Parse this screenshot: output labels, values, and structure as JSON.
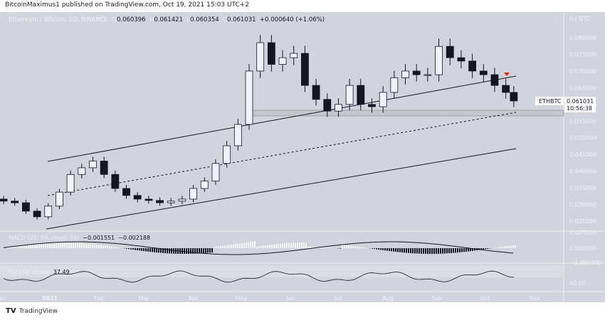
{
  "header": {
    "published": "BitcoinMaximus1 published on TradingView.com, Oct 19, 2021 15:03 UTC+2"
  },
  "legend": {
    "symbol": "Ethereum / Bitcoin, 1D, BINANCE",
    "o_label": "O",
    "o": "0.060396",
    "h_label": "H",
    "h": "0.061421",
    "l_label": "L",
    "l": "0.060354",
    "c_label": "C",
    "c": "0.061031",
    "change": "+0.000640 (+1.06%)"
  },
  "price_label": {
    "ticker": "ETHBTC",
    "price": "0.061031",
    "countdown": "10:56:38"
  },
  "macd": {
    "name": "MACD (21, 50, close, 24)",
    "v1": "−0.001551",
    "v2": "−0.002188",
    "ticks": [
      "0.005000",
      "0.000000",
      "−0.005000"
    ]
  },
  "rsi": {
    "name": "RSI (14, close)",
    "value": "37.49",
    "ticks": [
      "40.00"
    ]
  },
  "footer": {
    "brand": "TradingView"
  },
  "colors": {
    "background": "#d1d4dc",
    "candle": "#131722",
    "arrow": "#e0261b"
  },
  "chart_data": {
    "type": "candlestick",
    "title": "Ethereum / Bitcoin, 1D, BINANCE",
    "yunit": "BTC",
    "ylim": [
      0.022,
      0.083
    ],
    "y_ticks": [
      "0.080000",
      "0.075000",
      "0.070000",
      "0.065000",
      "0.060000",
      "0.055000",
      "0.050000",
      "0.045000",
      "0.040000",
      "0.035000",
      "0.030000",
      "0.025000"
    ],
    "x_ticks": [
      "Dec",
      "2021",
      "Feb",
      "Mar",
      "Apr",
      "May",
      "Jun",
      "Jul",
      "Aug",
      "Sep",
      "Oct",
      "Nov"
    ],
    "grid": false,
    "series": [
      {
        "dates": [
          "2020-12-03",
          "2020-12-10",
          "2020-12-17",
          "2020-12-24",
          "2020-12-31",
          "2021-01-07",
          "2021-01-14",
          "2021-01-21",
          "2021-01-28",
          "2021-02-04",
          "2021-02-11",
          "2021-02-18",
          "2021-02-25",
          "2021-03-04",
          "2021-03-11",
          "2021-03-18",
          "2021-03-25",
          "2021-04-01",
          "2021-04-08",
          "2021-04-15",
          "2021-04-22",
          "2021-04-29",
          "2021-05-06",
          "2021-05-13",
          "2021-05-20",
          "2021-05-27",
          "2021-06-03",
          "2021-06-10",
          "2021-06-17",
          "2021-06-24",
          "2021-07-01",
          "2021-07-08",
          "2021-07-15",
          "2021-07-22",
          "2021-07-29",
          "2021-08-05",
          "2021-08-12",
          "2021-08-19",
          "2021-08-26",
          "2021-09-02",
          "2021-09-09",
          "2021-09-16",
          "2021-09-23",
          "2021-09-30",
          "2021-10-07",
          "2021-10-14",
          "2021-10-19"
        ],
        "close": [
          0.031,
          0.0305,
          0.028,
          0.0263,
          0.0295,
          0.0337,
          0.039,
          0.041,
          0.043,
          0.039,
          0.0348,
          0.0327,
          0.0316,
          0.0312,
          0.0305,
          0.031,
          0.0316,
          0.0348,
          0.037,
          0.0423,
          0.0476,
          0.054,
          0.07,
          0.0785,
          0.072,
          0.074,
          0.0753,
          0.0657,
          0.0615,
          0.058,
          0.06,
          0.0657,
          0.06,
          0.0593,
          0.0636,
          0.068,
          0.07,
          0.0689,
          0.0689,
          0.0774,
          0.074,
          0.073,
          0.07,
          0.0689,
          0.0657,
          0.0636,
          0.061031
        ]
      }
    ]
  }
}
